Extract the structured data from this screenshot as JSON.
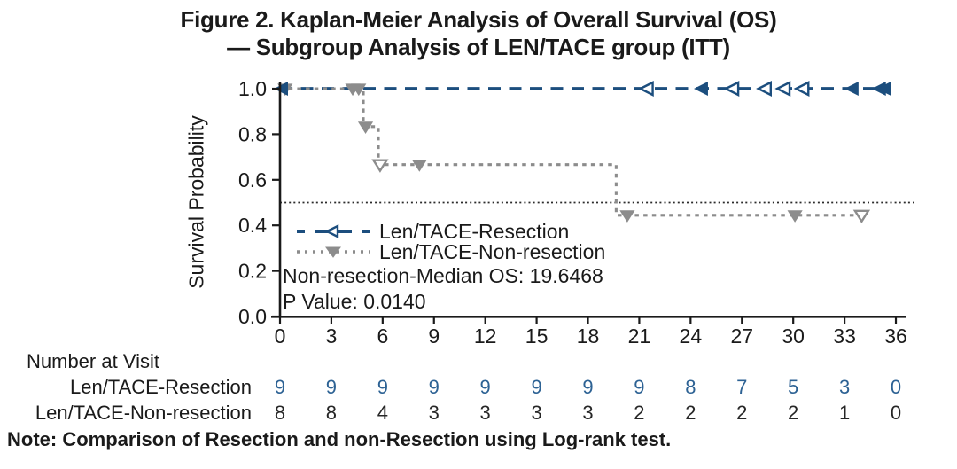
{
  "title": {
    "line1": "Figure 2. Kaplan-Meier Analysis of Overall Survival (OS)",
    "line2": "— Subgroup Analysis of LEN/TACE group (ITT)"
  },
  "axes": {
    "y_label": "Survival Probability",
    "y_ticks": [
      "1.0",
      "0.8",
      "0.6",
      "0.4",
      "0.2",
      "0.0"
    ],
    "x_ticks": [
      "0",
      "3",
      "6",
      "9",
      "12",
      "15",
      "18",
      "21",
      "24",
      "27",
      "30",
      "33",
      "36"
    ]
  },
  "colors": {
    "resection": "#1c4e7e",
    "non_resection": "#8c8c8c",
    "risk_resection_numbers": "#2d6294",
    "risk_non_resection_numbers": "#262626",
    "axis": "#1a1a1a",
    "reference_line": "#2b2b2b"
  },
  "legend": {
    "items": [
      {
        "label": "Len/TACE-Resection",
        "marker": "left-triangle-icon",
        "color": "#1c4e7e",
        "line_style": "dashed"
      },
      {
        "label": "Len/TACE-Non-resection",
        "marker": "down-triangle-icon",
        "color": "#8c8c8c",
        "line_style": "dotted"
      }
    ]
  },
  "annotations": {
    "median_os": "Non-resection-Median OS: 19.6468",
    "p_value": "P Value: 0.0140"
  },
  "chart_data": {
    "type": "line",
    "subtype": "kaplan-meier-step",
    "title": "Figure 2. Kaplan-Meier Analysis of Overall Survival (OS) — Subgroup Analysis of LEN/TACE group (ITT)",
    "xlabel": "",
    "ylabel": "Survival Probability",
    "xlim": [
      0,
      36
    ],
    "ylim": [
      0.0,
      1.0
    ],
    "x_tick_step": 3,
    "grid": false,
    "legend_position": "inside-left-middle",
    "reference_line_y": 0.5,
    "series": [
      {
        "name": "Len/TACE-Resection",
        "color": "#1c4e7e",
        "line_style": "dashed",
        "marker": "left-triangle",
        "steps": [
          [
            0,
            1.0
          ],
          [
            35.5,
            1.0
          ]
        ],
        "censor_marks": [
          [
            0.15,
            1.0,
            0
          ],
          [
            21.5,
            1.0,
            1
          ],
          [
            24.7,
            1.0,
            0
          ],
          [
            26.5,
            1.0,
            1
          ],
          [
            28.4,
            1.0,
            1
          ],
          [
            29.5,
            1.0,
            1
          ],
          [
            30.6,
            1.0,
            1
          ],
          [
            33.5,
            1.0,
            0
          ],
          [
            35.1,
            1.0,
            0
          ],
          [
            35.4,
            1.0,
            0
          ]
        ]
      },
      {
        "name": "Len/TACE-Non-resection",
        "color": "#8c8c8c",
        "line_style": "dotted",
        "marker": "down-triangle",
        "median_os": 19.6468,
        "steps": [
          [
            0,
            1.0
          ],
          [
            4.87,
            1.0
          ],
          [
            4.87,
            0.8333
          ],
          [
            5.75,
            0.8333
          ],
          [
            5.75,
            0.6667
          ],
          [
            19.65,
            0.6667
          ],
          [
            19.65,
            0.4444
          ],
          [
            34.3,
            0.4444
          ]
        ],
        "censor_marks": [
          [
            0.3,
            1.0,
            0
          ],
          [
            4.25,
            1.0,
            0
          ],
          [
            4.6,
            1.0,
            0
          ],
          [
            5.0,
            0.8333,
            0
          ],
          [
            5.85,
            0.6667,
            1
          ],
          [
            8.15,
            0.6667,
            0
          ],
          [
            20.3,
            0.4444,
            0
          ],
          [
            30.1,
            0.4444,
            0
          ],
          [
            34.0,
            0.4444,
            1
          ]
        ]
      }
    ],
    "p_value": 0.014,
    "number_at_risk": {
      "x": [
        0,
        3,
        6,
        9,
        12,
        15,
        18,
        21,
        24,
        27,
        30,
        33,
        36
      ],
      "resection": [
        9,
        9,
        9,
        9,
        9,
        9,
        9,
        9,
        8,
        7,
        5,
        3,
        0
      ],
      "non_resection": [
        8,
        8,
        4,
        3,
        3,
        3,
        3,
        2,
        2,
        2,
        2,
        1,
        0
      ]
    }
  },
  "risk_table": {
    "header": "Number at Visit",
    "rows": [
      {
        "label": "Len/TACE-Resection",
        "color": "#2d6294",
        "values": [
          "9",
          "9",
          "9",
          "9",
          "9",
          "9",
          "9",
          "9",
          "8",
          "7",
          "5",
          "3",
          "0"
        ]
      },
      {
        "label": "Len/TACE-Non-resection",
        "color": "#262626",
        "values": [
          "8",
          "8",
          "4",
          "3",
          "3",
          "3",
          "3",
          "2",
          "2",
          "2",
          "2",
          "1",
          "0"
        ]
      }
    ]
  },
  "note": "Note: Comparison of Resection and non-Resection using Log-rank test."
}
